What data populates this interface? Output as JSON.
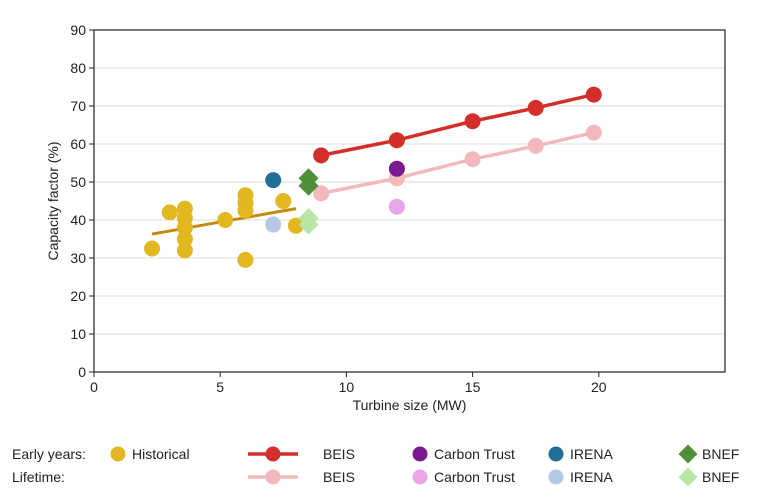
{
  "chart_data": {
    "type": "scatter",
    "title": "",
    "xlabel": "Turbine size (MW)",
    "ylabel": "Capacity factor (%)",
    "xlim": [
      0,
      25
    ],
    "ylim": [
      0,
      90
    ],
    "x_ticks": [
      0,
      5,
      10,
      15,
      20
    ],
    "y_ticks": [
      0,
      10,
      20,
      30,
      40,
      50,
      60,
      70,
      80,
      90
    ],
    "grid": "horizontal",
    "series": [
      {
        "name": "Historical",
        "group": "Early years",
        "marker": "circle",
        "color": "#e2b71f",
        "points": [
          [
            2.3,
            32.5
          ],
          [
            3.0,
            42.0
          ],
          [
            3.6,
            43.0
          ],
          [
            3.6,
            40.5
          ],
          [
            3.6,
            38.0
          ],
          [
            3.6,
            35.0
          ],
          [
            3.6,
            32.0
          ],
          [
            5.2,
            40.0
          ],
          [
            6.0,
            46.5
          ],
          [
            6.0,
            44.5
          ],
          [
            6.0,
            42.5
          ],
          [
            6.0,
            29.5
          ],
          [
            7.5,
            45.0
          ],
          [
            8.0,
            38.5
          ]
        ],
        "trend": {
          "x": [
            2.3,
            8.0
          ],
          "y": [
            36.3,
            43.0
          ],
          "color": "#c48a0e"
        }
      },
      {
        "name": "BEIS",
        "group": "Early years",
        "marker": "circle",
        "color": "#d42e2a",
        "line": true,
        "points": [
          [
            9.0,
            57.0
          ],
          [
            12.0,
            61.0
          ],
          [
            15.0,
            66.0
          ],
          [
            17.5,
            69.5
          ],
          [
            19.8,
            73.0
          ]
        ]
      },
      {
        "name": "BEIS",
        "group": "Lifetime",
        "marker": "circle",
        "color": "#f2b8bc",
        "line": true,
        "points": [
          [
            9.0,
            47.0
          ],
          [
            12.0,
            51.0
          ],
          [
            15.0,
            56.0
          ],
          [
            17.5,
            59.5
          ],
          [
            19.8,
            63.0
          ]
        ]
      },
      {
        "name": "Carbon Trust",
        "group": "Early years",
        "marker": "circle",
        "color": "#7b1a8f",
        "points": [
          [
            12.0,
            53.5
          ]
        ]
      },
      {
        "name": "Carbon Trust",
        "group": "Lifetime",
        "marker": "circle",
        "color": "#e8a6e8",
        "points": [
          [
            12.0,
            43.5
          ]
        ]
      },
      {
        "name": "IRENA",
        "group": "Early years",
        "marker": "circle",
        "color": "#1f6f96",
        "points": [
          [
            7.1,
            50.5
          ]
        ]
      },
      {
        "name": "IRENA",
        "group": "Lifetime",
        "marker": "circle",
        "color": "#b4c7e7",
        "points": [
          [
            7.1,
            38.8
          ]
        ]
      },
      {
        "name": "BNEF",
        "group": "Early years",
        "marker": "diamond",
        "color": "#4f8f3a",
        "points": [
          [
            8.5,
            51.0
          ],
          [
            8.5,
            49.0
          ]
        ]
      },
      {
        "name": "BNEF",
        "group": "Lifetime",
        "marker": "diamond",
        "color": "#b8e6a8",
        "points": [
          [
            8.5,
            40.5
          ],
          [
            8.5,
            38.8
          ]
        ]
      }
    ],
    "legend": {
      "placement": "bottom",
      "rows": [
        {
          "label": "Early years:",
          "entries": [
            {
              "name": "Historical",
              "color": "#e2b71f",
              "marker": "circle",
              "line": false
            },
            {
              "name": "BEIS",
              "color": "#d42e2a",
              "marker": "circle",
              "line": true
            },
            {
              "name": "Carbon Trust",
              "color": "#7b1a8f",
              "marker": "circle",
              "line": false
            },
            {
              "name": "IRENA",
              "color": "#1f6f96",
              "marker": "circle",
              "line": false
            },
            {
              "name": "BNEF",
              "color": "#4f8f3a",
              "marker": "diamond",
              "line": false
            }
          ]
        },
        {
          "label": "Lifetime:",
          "entries": [
            {
              "name": "",
              "color": "",
              "marker": "none",
              "line": false
            },
            {
              "name": "BEIS",
              "color": "#f2b8bc",
              "marker": "circle",
              "line": true
            },
            {
              "name": "Carbon Trust",
              "color": "#e8a6e8",
              "marker": "circle",
              "line": false
            },
            {
              "name": "IRENA",
              "color": "#b4c7e7",
              "marker": "circle",
              "line": false
            },
            {
              "name": "BNEF",
              "color": "#b8e6a8",
              "marker": "diamond",
              "line": false
            }
          ]
        }
      ]
    }
  }
}
